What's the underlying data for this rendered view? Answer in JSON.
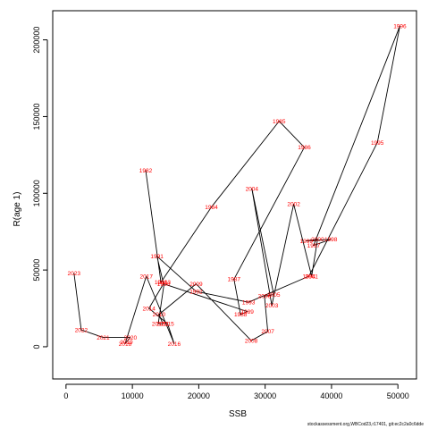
{
  "chart_data": {
    "type": "scatter",
    "connected": true,
    "title": "",
    "xlabel": "SSB",
    "ylabel": "R(age 1)",
    "xlim": [
      -2000,
      52800
    ],
    "ylim": [
      -21000,
      219000
    ],
    "x_ticks": [
      0,
      10000,
      20000,
      30000,
      40000,
      50000
    ],
    "y_ticks": [
      0,
      50000,
      100000,
      150000,
      200000
    ],
    "line_color": "#000000",
    "label_color": "#ff0000",
    "points": [
      {
        "label": "1982",
        "x": 12000,
        "y": 115000
      },
      {
        "label": "1983",
        "x": 14300,
        "y": 42000
      },
      {
        "label": "1984",
        "x": 21900,
        "y": 91000
      },
      {
        "label": "1985",
        "x": 32100,
        "y": 147000
      },
      {
        "label": "1986",
        "x": 35900,
        "y": 130000
      },
      {
        "label": "1987",
        "x": 25300,
        "y": 44000
      },
      {
        "label": "1988",
        "x": 26300,
        "y": 21000
      },
      {
        "label": "1989",
        "x": 27300,
        "y": 23000
      },
      {
        "label": "1990",
        "x": 14700,
        "y": 41000
      },
      {
        "label": "1991",
        "x": 13700,
        "y": 59000
      },
      {
        "label": "1992",
        "x": 19600,
        "y": 36000
      },
      {
        "label": "1993",
        "x": 27500,
        "y": 29000
      },
      {
        "label": "1994",
        "x": 36600,
        "y": 46000
      },
      {
        "label": "1995",
        "x": 46900,
        "y": 133000
      },
      {
        "label": "1996",
        "x": 50300,
        "y": 209000
      },
      {
        "label": "1997",
        "x": 37300,
        "y": 66000
      },
      {
        "label": "1998",
        "x": 39900,
        "y": 70000
      },
      {
        "label": "1999",
        "x": 36200,
        "y": 69000
      },
      {
        "label": "2000",
        "x": 37900,
        "y": 70000
      },
      {
        "label": "2001",
        "x": 37000,
        "y": 46000
      },
      {
        "label": "2002",
        "x": 34300,
        "y": 93000
      },
      {
        "label": "2003",
        "x": 31000,
        "y": 27000
      },
      {
        "label": "2004",
        "x": 28000,
        "y": 103000
      },
      {
        "label": "2005",
        "x": 31300,
        "y": 34000
      },
      {
        "label": "2006",
        "x": 29900,
        "y": 33000
      },
      {
        "label": "2007",
        "x": 30400,
        "y": 10000
      },
      {
        "label": "2008",
        "x": 27900,
        "y": 4000
      },
      {
        "label": "2009",
        "x": 19600,
        "y": 41000
      },
      {
        "label": "2010",
        "x": 14000,
        "y": 21000
      },
      {
        "label": "2011",
        "x": 14600,
        "y": 15000
      },
      {
        "label": "2012",
        "x": 13900,
        "y": 15000
      },
      {
        "label": "2013",
        "x": 14800,
        "y": 42000
      },
      {
        "label": "2014",
        "x": 12500,
        "y": 25000
      },
      {
        "label": "2015",
        "x": 15300,
        "y": 15000
      },
      {
        "label": "2016",
        "x": 16300,
        "y": 2000
      },
      {
        "label": "2017",
        "x": 12100,
        "y": 46000
      },
      {
        "label": "2018",
        "x": 8900,
        "y": 2000
      },
      {
        "label": "2019",
        "x": 9100,
        "y": 3000
      },
      {
        "label": "2020",
        "x": 9700,
        "y": 6000
      },
      {
        "label": "2021",
        "x": 5600,
        "y": 6000
      },
      {
        "label": "2022",
        "x": 2300,
        "y": 11000
      },
      {
        "label": "2023",
        "x": 1200,
        "y": 48000
      }
    ]
  },
  "footer_text": "stockassessment.org,WBCod23,r17401, git:ec2c2a0c6dde"
}
